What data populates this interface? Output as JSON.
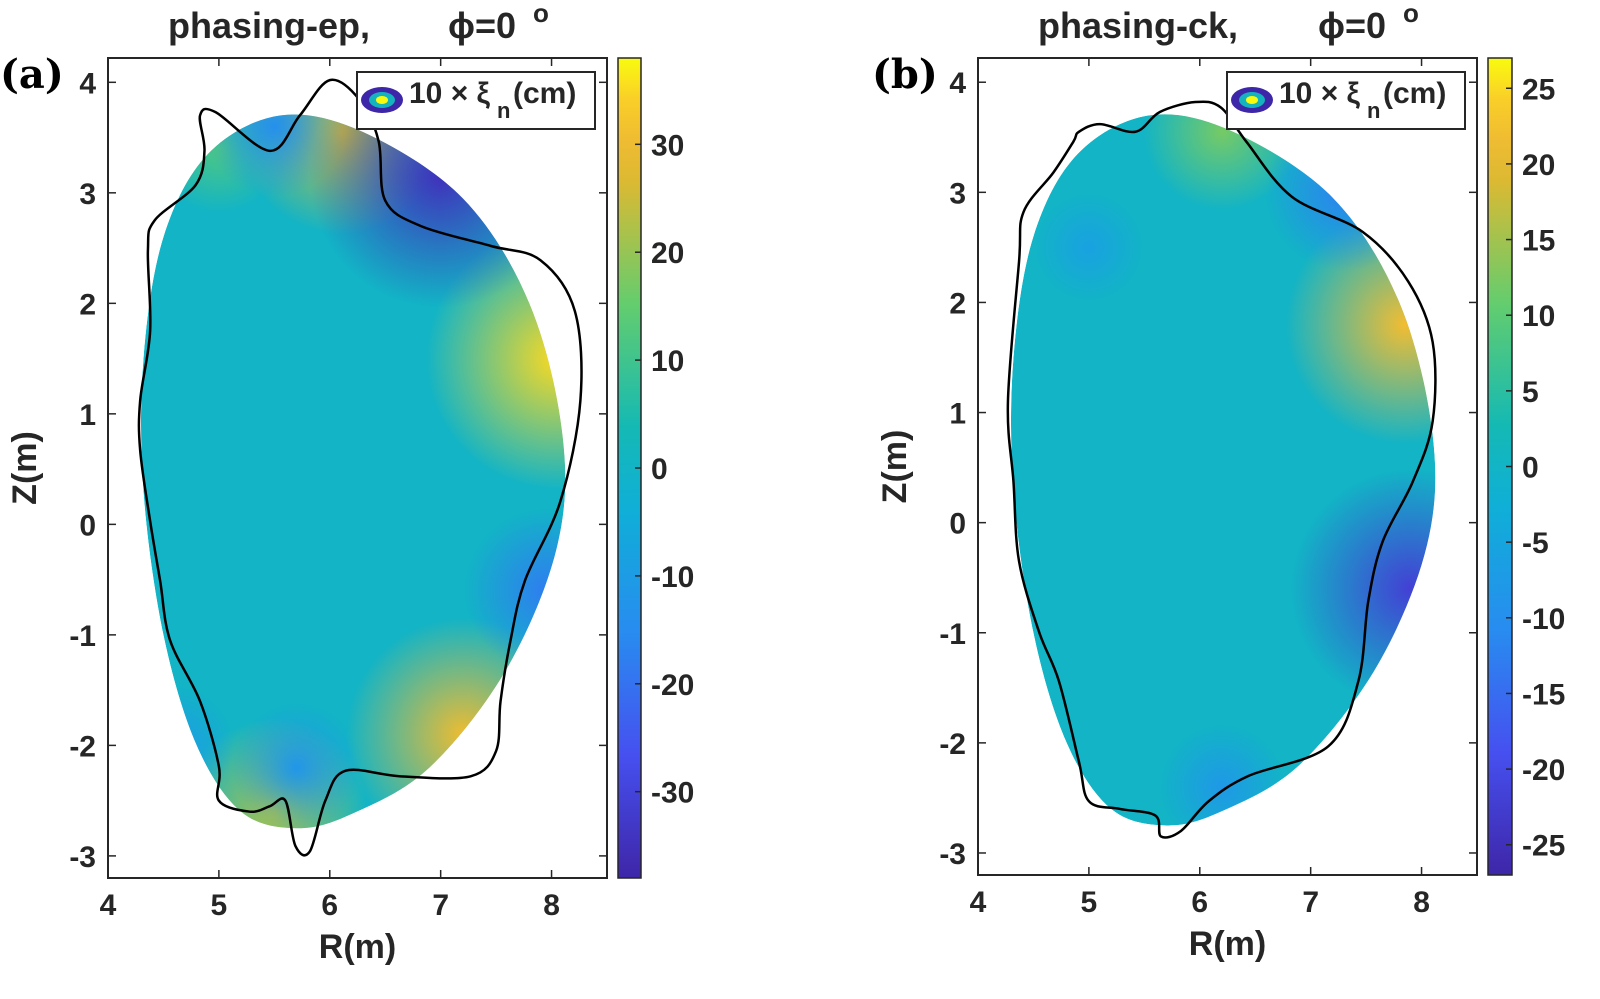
{
  "chart_data": [
    {
      "type": "heatmap",
      "panel_label": "(a)",
      "title": "phasing-ep,",
      "title_phi": "ϕ=0",
      "title_degree": "o",
      "xlabel": "R(m)",
      "ylabel": "Z(m)",
      "xlim": [
        4,
        8.5
      ],
      "ylim": [
        -3.2,
        4.22
      ],
      "xticks": [
        4,
        5,
        6,
        7,
        8
      ],
      "yticks": [
        -3,
        -2,
        -1,
        0,
        1,
        2,
        3,
        4
      ],
      "legend": {
        "text": "10 × ξ",
        "sub": "n",
        "suffix": "(cm)",
        "placement": "top-right"
      },
      "colorbar": {
        "range": [
          -38,
          38
        ],
        "ticks": [
          -30,
          -20,
          -10,
          0,
          10,
          20,
          30
        ]
      },
      "hotspots": [
        {
          "R": 8.05,
          "Z": 1.5,
          "v": 35
        },
        {
          "R": 7.2,
          "Z": -1.9,
          "v": 30
        },
        {
          "R": 6.1,
          "Z": 3.55,
          "v": 25
        },
        {
          "R": 5.0,
          "Z": 3.4,
          "v": 12
        },
        {
          "R": 5.5,
          "Z": -2.6,
          "v": 22
        },
        {
          "R": 7.0,
          "Z": 3.15,
          "v": -35
        },
        {
          "R": 7.95,
          "Z": -0.6,
          "v": -18
        },
        {
          "R": 5.5,
          "Z": 3.6,
          "v": -14
        },
        {
          "R": 4.6,
          "Z": -2.0,
          "v": -10
        },
        {
          "R": 5.7,
          "Z": -2.2,
          "v": -12
        }
      ],
      "boundary": [
        [
          4.83,
          3.7
        ],
        [
          4.97,
          3.73
        ],
        [
          5.46,
          3.38
        ],
        [
          5.73,
          3.7
        ],
        [
          6.0,
          4.02
        ],
        [
          6.27,
          3.84
        ],
        [
          6.44,
          3.47
        ],
        [
          6.5,
          2.93
        ],
        [
          6.82,
          2.7
        ],
        [
          7.45,
          2.52
        ],
        [
          7.9,
          2.39
        ],
        [
          8.21,
          1.93
        ],
        [
          8.26,
          1.12
        ],
        [
          8.08,
          0.21
        ],
        [
          7.76,
          -0.51
        ],
        [
          7.63,
          -1.05
        ],
        [
          7.54,
          -1.6
        ],
        [
          7.5,
          -2.05
        ],
        [
          7.27,
          -2.28
        ],
        [
          6.64,
          -2.28
        ],
        [
          6.14,
          -2.23
        ],
        [
          5.96,
          -2.5
        ],
        [
          5.82,
          -2.96
        ],
        [
          5.69,
          -2.91
        ],
        [
          5.6,
          -2.5
        ],
        [
          5.46,
          -2.55
        ],
        [
          5.28,
          -2.6
        ],
        [
          5.0,
          -2.5
        ],
        [
          5.0,
          -2.19
        ],
        [
          4.83,
          -1.6
        ],
        [
          4.56,
          -1.05
        ],
        [
          4.47,
          -0.51
        ],
        [
          4.38,
          0.03
        ],
        [
          4.29,
          0.67
        ],
        [
          4.29,
          1.12
        ],
        [
          4.38,
          1.75
        ],
        [
          4.36,
          2.48
        ],
        [
          4.42,
          2.75
        ],
        [
          4.79,
          3.07
        ],
        [
          4.87,
          3.38
        ]
      ]
    },
    {
      "type": "heatmap",
      "panel_label": "(b)",
      "title": "phasing-ck,",
      "title_phi": "ϕ=0",
      "title_degree": "o",
      "xlabel": "R(m)",
      "ylabel": "Z(m)",
      "xlim": [
        4,
        8.5
      ],
      "ylim": [
        -3.2,
        4.22
      ],
      "xticks": [
        4,
        5,
        6,
        7,
        8
      ],
      "yticks": [
        -3,
        -2,
        -1,
        0,
        1,
        2,
        3,
        4
      ],
      "legend": {
        "text": "10 × ξ",
        "sub": "n",
        "suffix": "(cm)",
        "placement": "top-right"
      },
      "colorbar": {
        "range": [
          -27,
          27
        ],
        "ticks": [
          -25,
          -20,
          -15,
          -10,
          -5,
          0,
          5,
          10,
          15,
          20,
          25
        ]
      },
      "hotspots": [
        {
          "R": 7.85,
          "Z": 1.8,
          "v": 22
        },
        {
          "R": 6.2,
          "Z": 3.55,
          "v": 12
        },
        {
          "R": 7.9,
          "Z": -0.6,
          "v": -22
        },
        {
          "R": 7.3,
          "Z": 3.0,
          "v": -12
        },
        {
          "R": 5.0,
          "Z": 2.5,
          "v": -6
        },
        {
          "R": 6.2,
          "Z": -2.4,
          "v": -8
        }
      ],
      "boundary": [
        [
          4.91,
          3.55
        ],
        [
          5.1,
          3.62
        ],
        [
          5.42,
          3.55
        ],
        [
          5.64,
          3.73
        ],
        [
          5.96,
          3.82
        ],
        [
          6.19,
          3.77
        ],
        [
          6.42,
          3.46
        ],
        [
          6.83,
          2.96
        ],
        [
          7.47,
          2.64
        ],
        [
          7.88,
          2.19
        ],
        [
          8.1,
          1.64
        ],
        [
          8.1,
          0.92
        ],
        [
          7.92,
          0.37
        ],
        [
          7.65,
          -0.17
        ],
        [
          7.52,
          -0.71
        ],
        [
          7.43,
          -1.44
        ],
        [
          7.16,
          -2.03
        ],
        [
          6.44,
          -2.3
        ],
        [
          6.08,
          -2.53
        ],
        [
          5.83,
          -2.8
        ],
        [
          5.65,
          -2.85
        ],
        [
          5.6,
          -2.66
        ],
        [
          5.28,
          -2.6
        ],
        [
          5.0,
          -2.53
        ],
        [
          4.91,
          -2.17
        ],
        [
          4.73,
          -1.44
        ],
        [
          4.55,
          -0.99
        ],
        [
          4.37,
          -0.35
        ],
        [
          4.32,
          0.37
        ],
        [
          4.27,
          1.1
        ],
        [
          4.37,
          2.37
        ],
        [
          4.41,
          2.82
        ],
        [
          4.68,
          3.18
        ],
        [
          4.86,
          3.46
        ]
      ]
    }
  ]
}
